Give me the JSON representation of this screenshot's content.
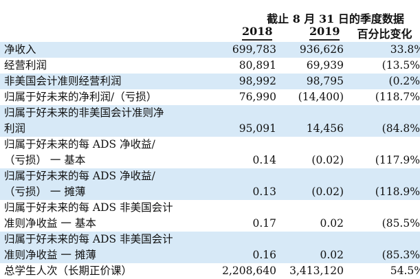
{
  "header": {
    "title": "截止 8 月 31 日的季度数据",
    "col_2018": "2018",
    "col_2019": "2019",
    "col_change": "百分比变化"
  },
  "rows": [
    {
      "label_line1": "净收入",
      "label_line2": "",
      "v2018": "699,783",
      "v2019": "936,626",
      "change": "33.8%",
      "shaded": true
    },
    {
      "label_line1": "经营利润",
      "label_line2": "",
      "v2018": "80,891",
      "v2019": "69,939",
      "change": "(13.5%)",
      "shaded": false
    },
    {
      "label_line1": "非美国会计准则经营利润",
      "label_line2": "",
      "v2018": "98,992",
      "v2019": "98,795",
      "change": "(0.2%)",
      "shaded": true
    },
    {
      "label_line1": "归属于好未来的净利润/（亏损）",
      "label_line2": "",
      "v2018": "76,990",
      "v2019": "(14,400)",
      "change": "(118.7%)",
      "shaded": false
    },
    {
      "label_line1": "归属于好未来的非美国会计准则净",
      "label_line2": "利润",
      "v2018": "95,091",
      "v2019": "14,456",
      "change": "(84.8%)",
      "shaded": true
    },
    {
      "label_line1": "归属于好未来的每 ADS 净收益/",
      "label_line2": "（亏损） 一 基本",
      "v2018": "0.14",
      "v2019": "(0.02)",
      "change": "(117.9%)",
      "shaded": false
    },
    {
      "label_line1": "归属于好未来的每 ADS 净收益/",
      "label_line2": "（亏损） 一 摊薄",
      "v2018": "0.13",
      "v2019": "(0.02)",
      "change": "(118.9%)",
      "shaded": true
    },
    {
      "label_line1": "归属于好未来的每 ADS 非美国会计",
      "label_line2": "准则净收益 一 基本",
      "v2018": "0.17",
      "v2019": "0.02",
      "change": "(85.5%)",
      "shaded": false
    },
    {
      "label_line1": "归属于好未来的每 ADS 非美国会计",
      "label_line2": "准则净收益 一 摊薄",
      "v2018": "0.16",
      "v2019": "0.02",
      "change": "(85.3%)",
      "shaded": true
    },
    {
      "label_line1": "总学生人次（长期正价课）",
      "label_line2": "",
      "v2018": "2,208,640",
      "v2019": "3,413,120",
      "change": "54.5%",
      "shaded": false
    }
  ]
}
